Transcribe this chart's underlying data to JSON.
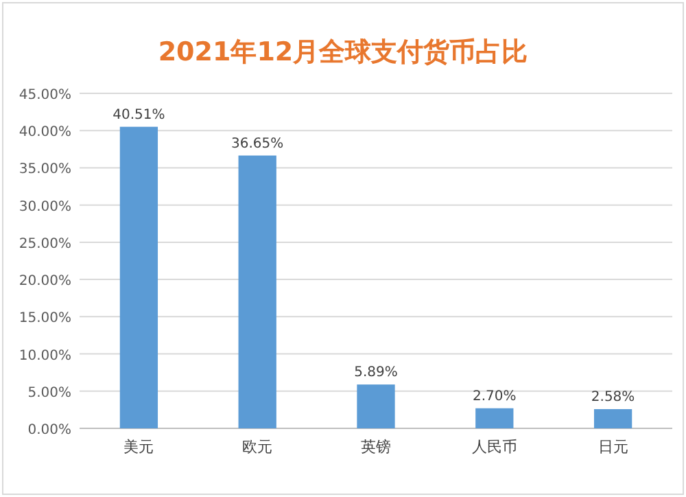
{
  "chart_data": {
    "type": "bar",
    "title": "2021年12月全球支付货币占比",
    "categories": [
      "美元",
      "欧元",
      "英镑",
      "人民币",
      "日元"
    ],
    "values": [
      40.51,
      36.65,
      5.89,
      2.7,
      2.58
    ],
    "value_labels": [
      "40.51%",
      "36.65%",
      "5.89%",
      "2.70%",
      "2.58%"
    ],
    "color": "#5b9bd5",
    "ylim": [
      0,
      45
    ],
    "yticks": [
      {
        "value": 0,
        "label": "0.00%"
      },
      {
        "value": 5,
        "label": "5.00%"
      },
      {
        "value": 10,
        "label": "10.00%"
      },
      {
        "value": 15,
        "label": "15.00%"
      },
      {
        "value": 20,
        "label": "20.00%"
      },
      {
        "value": 25,
        "label": "25.00%"
      },
      {
        "value": 30,
        "label": "30.00%"
      },
      {
        "value": 35,
        "label": "35.00%"
      },
      {
        "value": 40,
        "label": "40.00%"
      },
      {
        "value": 45,
        "label": "45.00%"
      }
    ],
    "grid": "y"
  }
}
